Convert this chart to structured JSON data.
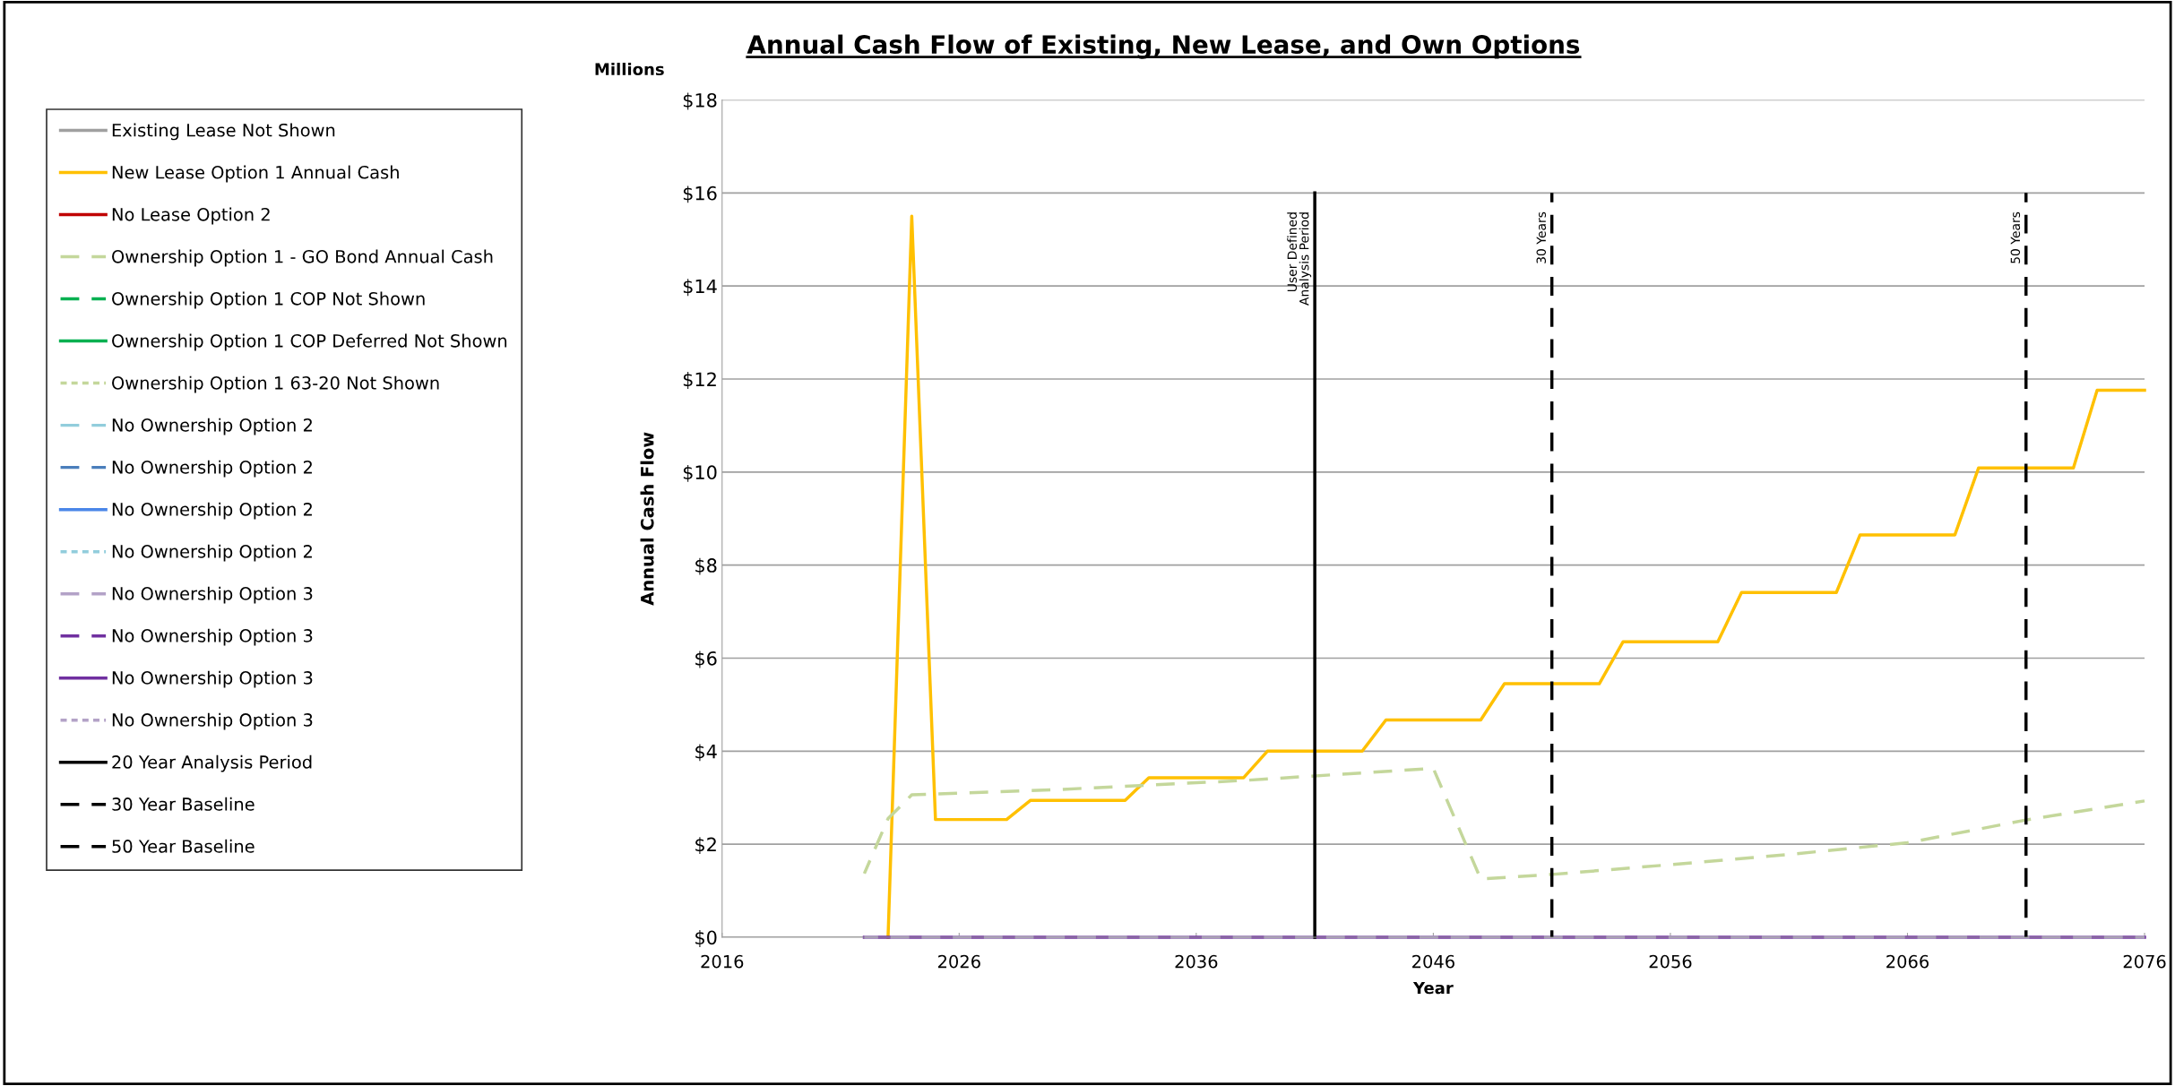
{
  "chart_data": {
    "type": "line",
    "title": "Annual Cash Flow of Existing, New Lease, and Own Options",
    "xlabel": "Year",
    "ylabel": "Annual Cash Flow",
    "annotations": [
      "Millions",
      {
        "text": "User Defined\nAnalysis Period",
        "x": 2041,
        "y": 16
      },
      {
        "text": "30 Years",
        "x": 2051,
        "y": 16
      },
      {
        "text": "50 Years",
        "x": 2071,
        "y": 16
      }
    ],
    "xlim": [
      2016,
      2076
    ],
    "xticks": [
      2016,
      2026,
      2036,
      2046,
      2056,
      2066,
      2076
    ],
    "ylim": [
      0,
      18
    ],
    "yticks": [
      {
        "value": 0,
        "label": "$0"
      },
      {
        "value": 2,
        "label": "$2"
      },
      {
        "value": 4,
        "label": "$4"
      },
      {
        "value": 6,
        "label": "$6"
      },
      {
        "value": 8,
        "label": "$8"
      },
      {
        "value": 10,
        "label": "$10"
      },
      {
        "value": 12,
        "label": "$12"
      },
      {
        "value": 14,
        "label": "$14"
      },
      {
        "value": 16,
        "label": "$16"
      },
      {
        "value": 18,
        "label": "$18"
      }
    ],
    "grid": "y",
    "legend": "left",
    "marker": "none",
    "series": [
      {
        "name": "Existing Lease Not Shown",
        "color": "#a0a0a0",
        "line_style": "solid",
        "values": [
          null,
          null
        ]
      },
      {
        "name": "New Lease Option 1 Annual Cash",
        "color": "#ffc000",
        "line_style": "solid",
        "x": [
          2023,
          2024,
          2025,
          2028,
          2029,
          2033,
          2034,
          2038,
          2039,
          2043,
          2044,
          2048,
          2049,
          2053,
          2054,
          2058,
          2059,
          2063,
          2064,
          2068,
          2069,
          2073,
          2074,
          2076
        ],
        "values": [
          0,
          15.5,
          2.53,
          2.53,
          2.94,
          2.94,
          3.43,
          3.43,
          4.0,
          4.0,
          4.67,
          4.67,
          5.45,
          5.45,
          6.35,
          6.35,
          7.41,
          7.41,
          8.65,
          8.65,
          10.09,
          10.09,
          11.76,
          11.76
        ]
      },
      {
        "name": "No Lease Option 2",
        "color": "#c00000",
        "line_style": "solid",
        "values": [
          null,
          null
        ]
      },
      {
        "name": "Ownership Option 1 - GO Bond Annual Cash",
        "color": "#c4d79b",
        "line_style": "dashed",
        "x": [
          2022,
          2023,
          2024,
          2030,
          2038,
          2046,
          2048,
          2051,
          2056,
          2061,
          2066,
          2071,
          2076
        ],
        "values": [
          1.37,
          2.55,
          3.06,
          3.17,
          3.37,
          3.63,
          1.25,
          1.35,
          1.56,
          1.78,
          2.03,
          2.52,
          2.93
        ]
      },
      {
        "name": "Ownership Option 1 COP Not Shown",
        "color": "#00b050",
        "line_style": "dashed",
        "values": [
          null,
          null
        ]
      },
      {
        "name": "Ownership Option 1 COP Deferred Not Shown",
        "color": "#00b050",
        "line_style": "solid",
        "values": [
          null,
          null
        ]
      },
      {
        "name": "Ownership Option 1 63-20 Not Shown",
        "color": "#c4d79b",
        "line_style": "dotted",
        "values": [
          null,
          null
        ]
      },
      {
        "name": "No Ownership Option 2",
        "color": "#92cddc",
        "line_style": "dashed",
        "values": [
          null,
          null
        ]
      },
      {
        "name": "No Ownership Option 2",
        "color": "#4a7ebb",
        "line_style": "dashed",
        "values": [
          null,
          null
        ]
      },
      {
        "name": "No Ownership Option 2",
        "color": "#4a86e8",
        "line_style": "solid",
        "values": [
          null,
          null
        ]
      },
      {
        "name": "No Ownership Option 2",
        "color": "#92cddc",
        "line_style": "dotted",
        "values": [
          null,
          null
        ]
      },
      {
        "name": "No Ownership Option 3",
        "color": "#b3a2c7",
        "line_style": "dashed",
        "values": [
          null,
          null
        ]
      },
      {
        "name": "No Ownership Option 3",
        "color": "#7030a0",
        "line_style": "dashed",
        "values": [
          null,
          null
        ]
      },
      {
        "name": "No Ownership Option 3",
        "color": "#7030a0",
        "line_style": "solid",
        "x": [
          2022,
          2076
        ],
        "values": [
          0,
          0
        ]
      },
      {
        "name": "No Ownership Option 3",
        "color": "#b3a2c7",
        "line_style": "dotted",
        "x": [
          2022,
          2076
        ],
        "values": [
          0,
          0
        ]
      },
      {
        "name": "20 Year Analysis Period",
        "color": "#000000",
        "line_style": "solid",
        "x": [
          2041,
          2041
        ],
        "values": [
          0,
          16
        ]
      },
      {
        "name": "30 Year Baseline",
        "color": "#000000",
        "line_style": "dashed",
        "x": [
          2051,
          2051
        ],
        "values": [
          0,
          16
        ]
      },
      {
        "name": "50 Year Baseline",
        "color": "#000000",
        "line_style": "dashed",
        "x": [
          2071,
          2071
        ],
        "values": [
          0,
          16
        ]
      }
    ]
  }
}
